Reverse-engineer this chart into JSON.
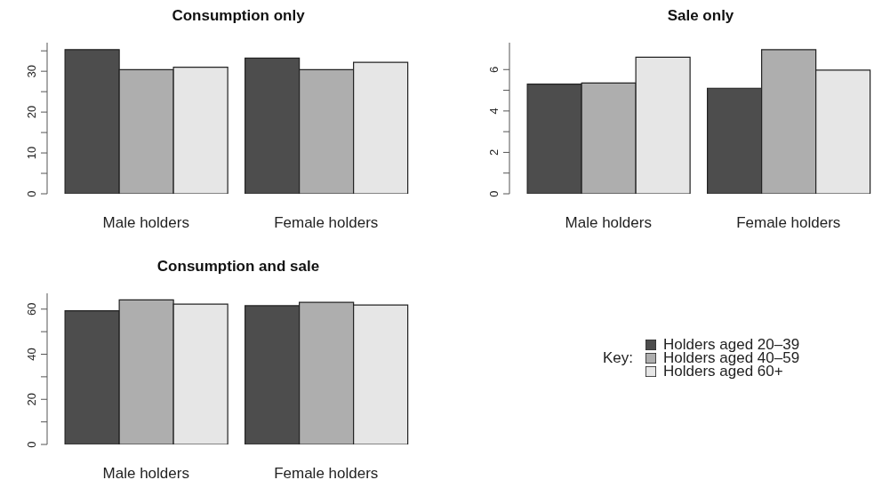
{
  "chart_data": [
    {
      "type": "bar",
      "title": "Consumption only",
      "categories": [
        "Male holders",
        "Female holders"
      ],
      "series": [
        {
          "color": "#4d4d4d",
          "values": [
            35.3,
            33.2
          ]
        },
        {
          "color": "#aeaeae",
          "values": [
            30.4,
            30.4
          ]
        },
        {
          "color": "#e6e6e6",
          "values": [
            31.0,
            32.2
          ]
        }
      ],
      "ylim": [
        0,
        37
      ],
      "yticks": [
        0,
        {
          "value": 5,
          "label": null
        },
        10,
        {
          "value": 15,
          "label": null
        },
        20,
        {
          "value": 25,
          "label": null
        },
        30,
        {
          "value": 35,
          "label": null
        }
      ],
      "grid": false,
      "legend": false
    },
    {
      "type": "bar",
      "title": "Sale only",
      "categories": [
        "Male holders",
        "Female holders"
      ],
      "series": [
        {
          "color": "#4d4d4d",
          "values": [
            5.3,
            5.1
          ]
        },
        {
          "color": "#aeaeae",
          "values": [
            5.35,
            6.96
          ]
        },
        {
          "color": "#e6e6e6",
          "values": [
            6.6,
            5.97
          ]
        }
      ],
      "ylim": [
        0,
        7.3
      ],
      "yticks": [
        0,
        {
          "value": 1,
          "label": null
        },
        2,
        {
          "value": 3,
          "label": null
        },
        4,
        {
          "value": 5,
          "label": null
        },
        6
      ],
      "grid": false,
      "legend": false
    },
    {
      "type": "bar",
      "title": "Consumption and sale",
      "categories": [
        "Male holders",
        "Female holders"
      ],
      "series": [
        {
          "name": "Holders aged 20–39",
          "color": "#4d4d4d",
          "values": [
            59.3,
            61.5
          ]
        },
        {
          "name": "Holders aged 40–59",
          "color": "#aeaeae",
          "values": [
            64.1,
            63.0
          ]
        },
        {
          "name": "Holders aged 60+",
          "color": "#e6e6e6",
          "values": [
            62.2,
            61.8
          ]
        }
      ],
      "ylim": [
        0,
        67
      ],
      "yticks": [
        0,
        {
          "value": 10,
          "label": null
        },
        20,
        {
          "value": 30,
          "label": null
        },
        40,
        {
          "value": 50,
          "label": null
        },
        60
      ],
      "grid": false,
      "legend": "right",
      "legend_title": "Key:"
    }
  ]
}
